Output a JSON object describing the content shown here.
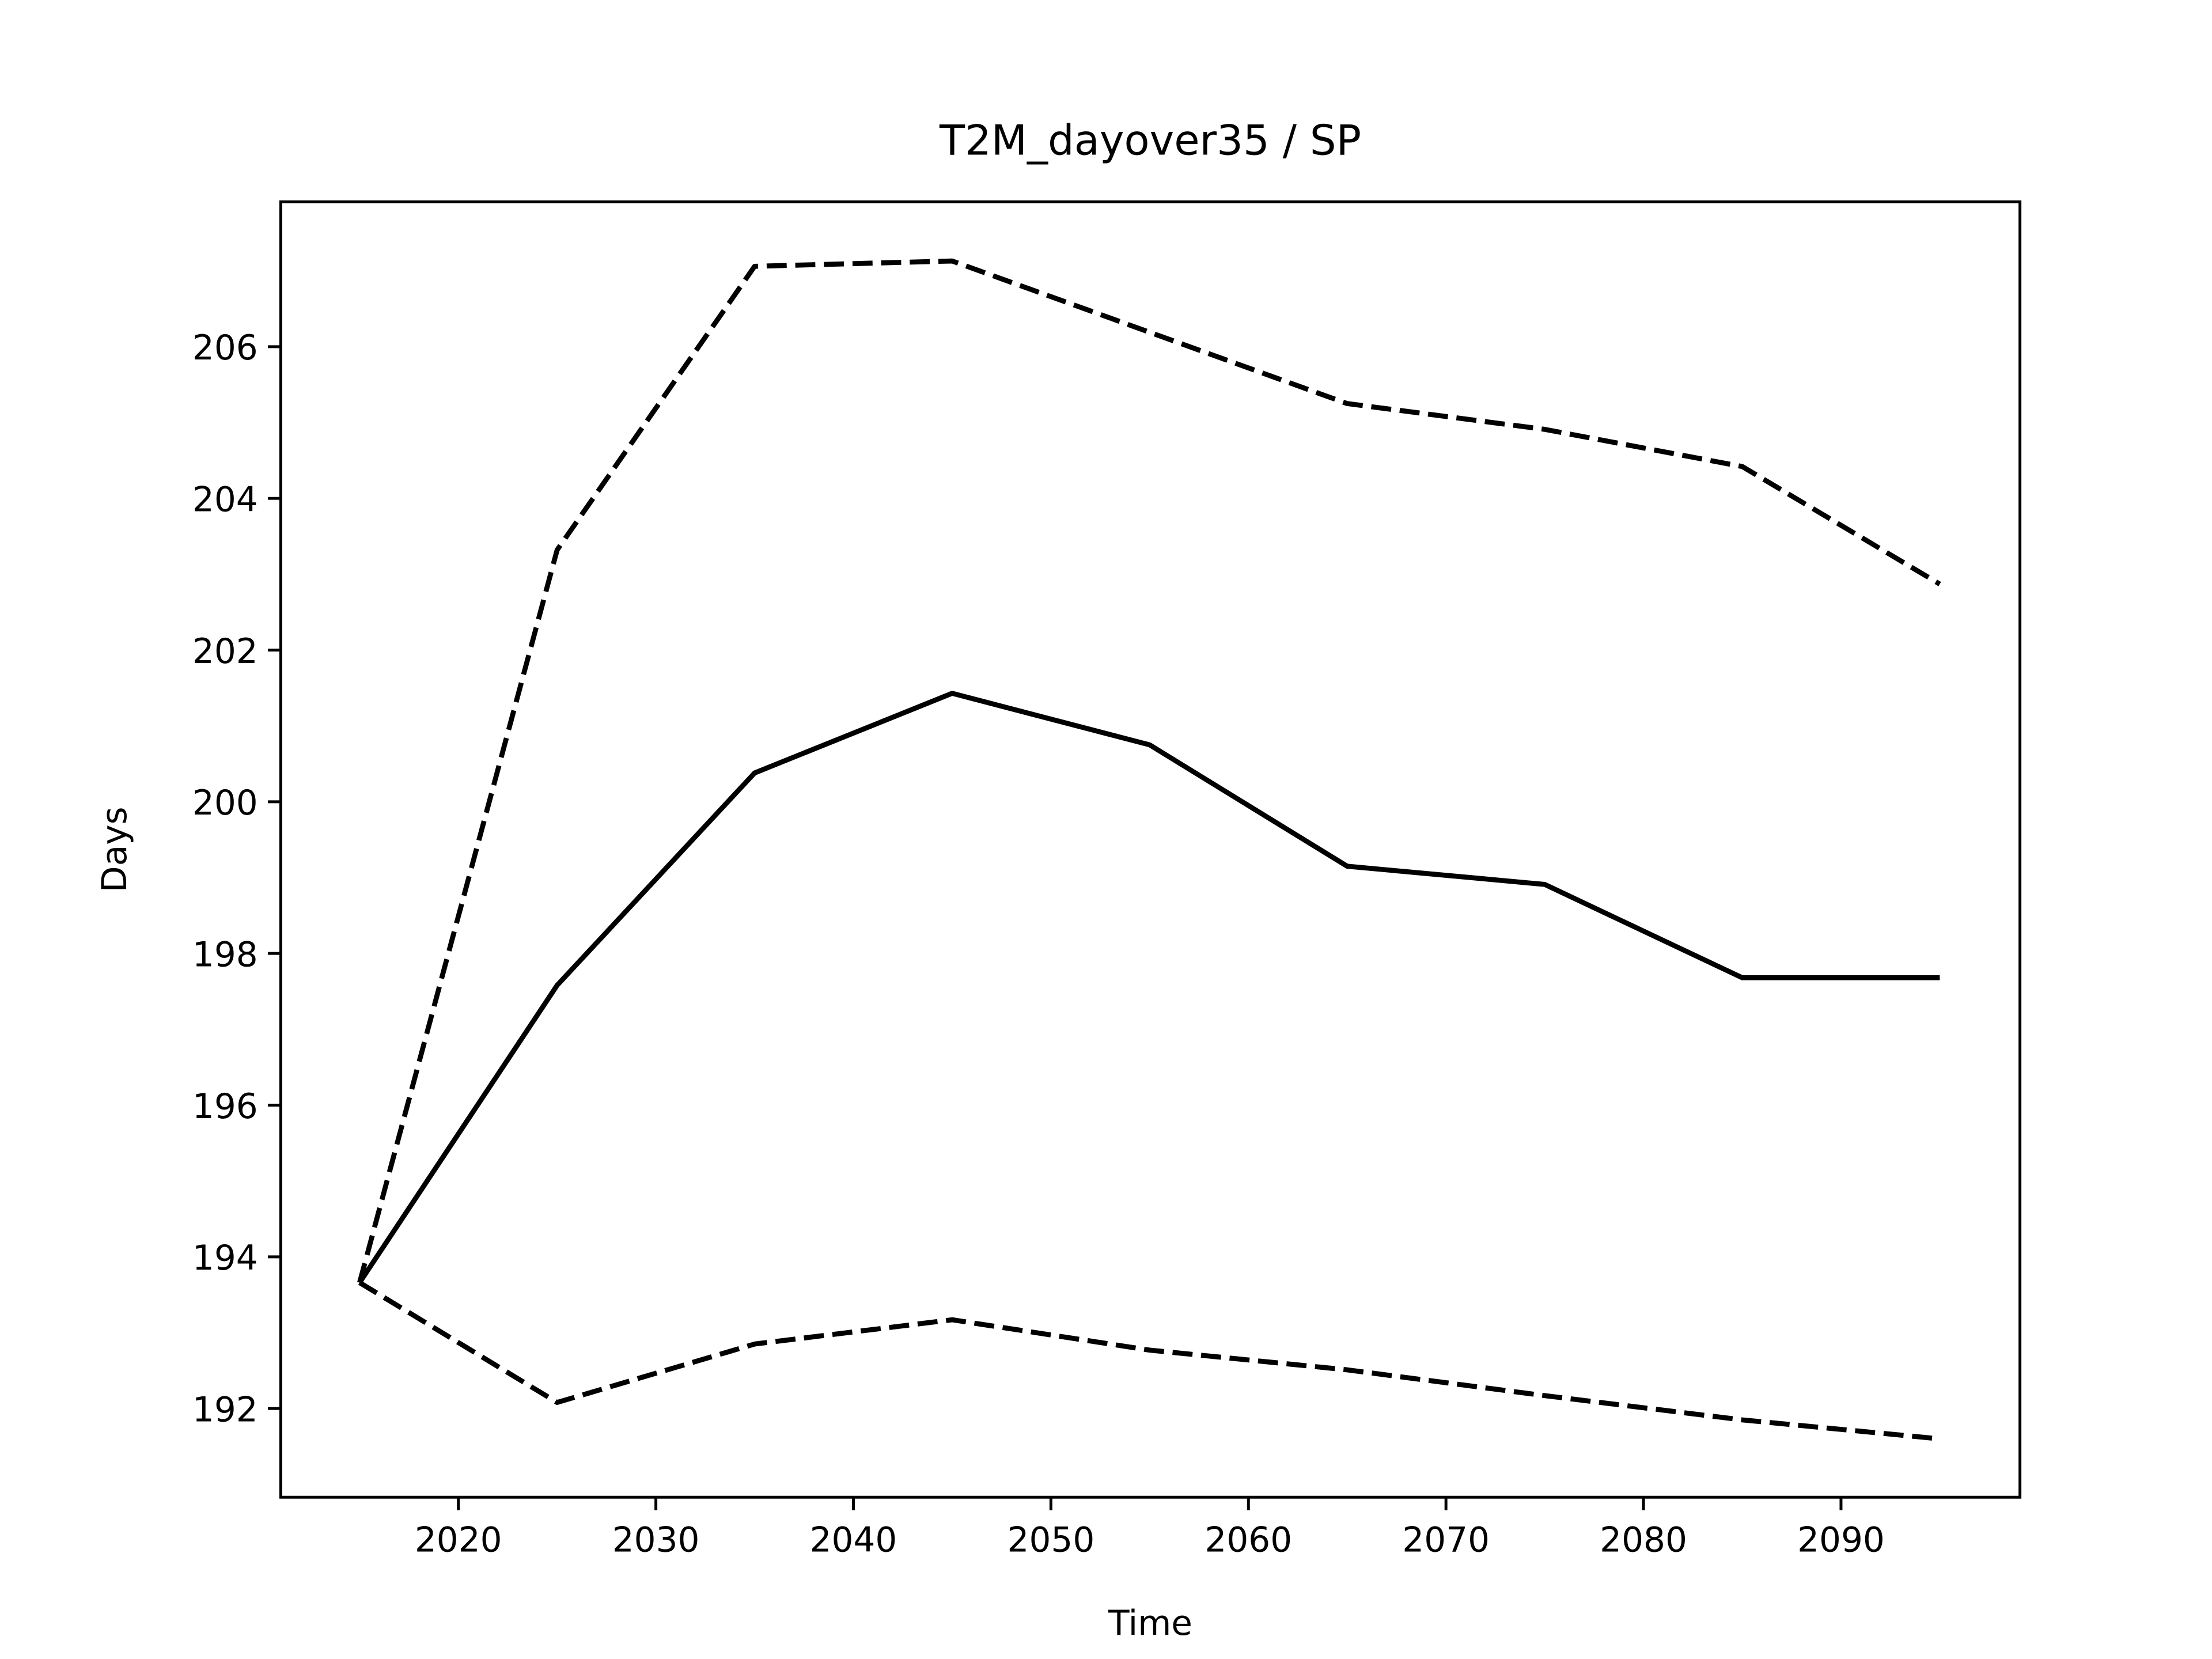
{
  "chart_data": {
    "type": "line",
    "title": "T2M_dayover35 / SP",
    "xlabel": "Time",
    "ylabel": "Days",
    "x": [
      2015,
      2025,
      2035,
      2045,
      2055,
      2065,
      2075,
      2085,
      2095
    ],
    "series": [
      {
        "color": "#000000",
        "style": "solid",
        "values": [
          193.66,
          197.58,
          200.38,
          201.43,
          200.75,
          199.15,
          198.91,
          197.68,
          197.68
        ]
      },
      {
        "color": "#000000",
        "style": "dashed",
        "values": [
          193.66,
          203.32,
          207.06,
          207.13,
          206.19,
          205.25,
          204.91,
          204.42,
          202.87
        ]
      },
      {
        "color": "#000000",
        "style": "dashed",
        "values": [
          193.66,
          192.08,
          192.85,
          193.17,
          192.77,
          192.51,
          192.17,
          191.85,
          191.6
        ]
      }
    ],
    "xlim": [
      2011.01,
      2099.06
    ],
    "xticks": [
      2020,
      2030,
      2040,
      2050,
      2060,
      2070,
      2080,
      2090
    ],
    "ylim": [
      190.83,
      207.91
    ],
    "yticks": [
      192,
      194,
      196,
      198,
      200,
      202,
      204,
      206
    ],
    "grid": false
  }
}
